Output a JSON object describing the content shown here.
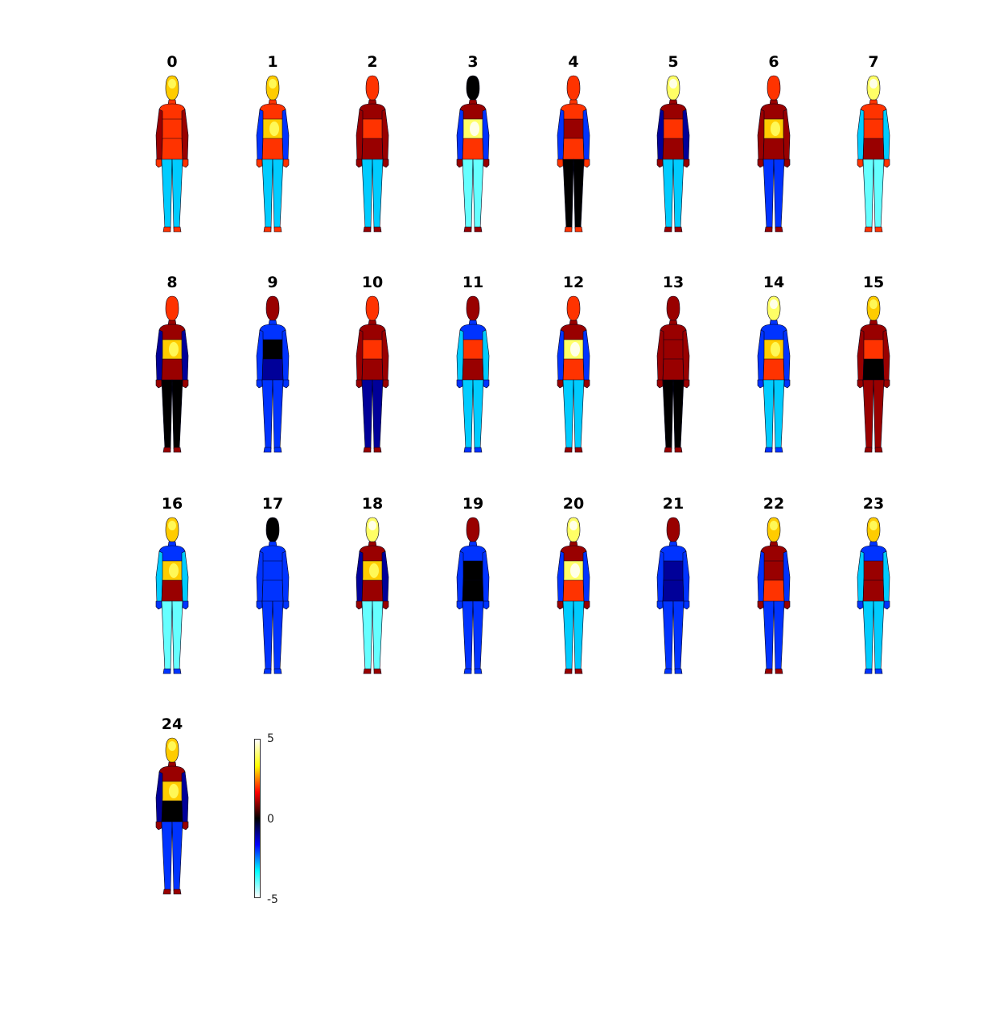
{
  "chart_data": {
    "type": "heatmap",
    "description_of_panels": "body maps",
    "panels": [
      {
        "label": "0",
        "head": 3,
        "upper": 2,
        "chest": 2,
        "arms": 1,
        "abdomen": 2,
        "legs": -3
      },
      {
        "label": "1",
        "head": 3,
        "upper": 2,
        "chest": 3,
        "arms": -2,
        "abdomen": 2,
        "legs": -3
      },
      {
        "label": "2",
        "head": 2,
        "upper": 1,
        "chest": 2,
        "arms": 1,
        "abdomen": 1,
        "legs": -3
      },
      {
        "label": "3",
        "head": 0,
        "upper": 1,
        "chest": 4,
        "arms": -2,
        "abdomen": 2,
        "legs": -4
      },
      {
        "label": "4",
        "head": 2,
        "upper": 2,
        "chest": 1,
        "arms": -2,
        "abdomen": 2,
        "legs": 0
      },
      {
        "label": "5",
        "head": 4,
        "upper": 1,
        "chest": 2,
        "arms": -1,
        "abdomen": 1,
        "legs": -3
      },
      {
        "label": "6",
        "head": 2,
        "upper": 1,
        "chest": 3,
        "arms": 1,
        "abdomen": 1,
        "legs": -2
      },
      {
        "label": "7",
        "head": 4,
        "upper": 2,
        "chest": 2,
        "arms": -3,
        "abdomen": 1,
        "legs": -4
      },
      {
        "label": "8",
        "head": 2,
        "upper": 1,
        "chest": 3,
        "arms": -1,
        "abdomen": 1,
        "legs": 0
      },
      {
        "label": "9",
        "head": 1,
        "upper": -2,
        "chest": 0,
        "arms": -2,
        "abdomen": -1,
        "legs": -2
      },
      {
        "label": "10",
        "head": 2,
        "upper": 1,
        "chest": 2,
        "arms": 1,
        "abdomen": 1,
        "legs": -1
      },
      {
        "label": "11",
        "head": 1,
        "upper": -2,
        "chest": 2,
        "arms": -3,
        "abdomen": 1,
        "legs": -3
      },
      {
        "label": "12",
        "head": 2,
        "upper": 1,
        "chest": 4,
        "arms": -2,
        "abdomen": 2,
        "legs": -3
      },
      {
        "label": "13",
        "head": 1,
        "upper": 1,
        "chest": 1,
        "arms": 1,
        "abdomen": 1,
        "legs": 0
      },
      {
        "label": "14",
        "head": 4,
        "upper": -2,
        "chest": 3,
        "arms": -2,
        "abdomen": 2,
        "legs": -3
      },
      {
        "label": "15",
        "head": 3,
        "upper": 1,
        "chest": 2,
        "arms": 1,
        "abdomen": 0,
        "legs": 1
      },
      {
        "label": "16",
        "head": 3,
        "upper": -2,
        "chest": 3,
        "arms": -3,
        "abdomen": 1,
        "legs": -4
      },
      {
        "label": "17",
        "head": 0,
        "upper": -2,
        "chest": -2,
        "arms": -2,
        "abdomen": -2,
        "legs": -2
      },
      {
        "label": "18",
        "head": 4,
        "upper": 1,
        "chest": 3,
        "arms": -1,
        "abdomen": 1,
        "legs": -4
      },
      {
        "label": "19",
        "head": 1,
        "upper": -2,
        "chest": 0,
        "arms": -2,
        "abdomen": 0,
        "legs": -2
      },
      {
        "label": "20",
        "head": 4,
        "upper": 1,
        "chest": 4,
        "arms": -2,
        "abdomen": 2,
        "legs": -3
      },
      {
        "label": "21",
        "head": 1,
        "upper": -2,
        "chest": -1,
        "arms": -2,
        "abdomen": -1,
        "legs": -2
      },
      {
        "label": "22",
        "head": 3,
        "upper": 1,
        "chest": 1,
        "arms": -2,
        "abdomen": 2,
        "legs": -2
      },
      {
        "label": "23",
        "head": 3,
        "upper": -2,
        "chest": 1,
        "arms": -3,
        "abdomen": 1,
        "legs": -3
      },
      {
        "label": "24",
        "head": 3,
        "upper": 1,
        "chest": 3,
        "arms": -1,
        "abdomen": 0,
        "legs": -2
      }
    ],
    "colorbar": {
      "min": -5,
      "max": 5,
      "ticks": [
        "5",
        "0",
        "-5"
      ],
      "colormap": [
        "#ffffff",
        "#00ffff",
        "#0000ff",
        "#000000",
        "#ff0000",
        "#ffff00",
        "#ffffff"
      ]
    }
  }
}
